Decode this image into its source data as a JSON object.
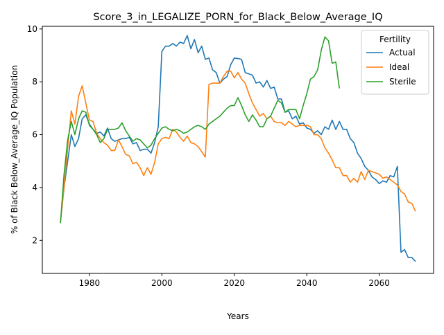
{
  "chart_data": {
    "type": "line",
    "title": "Score_3_in_LEGALIZE_PORN_for_Black_Below_Average_IQ",
    "xlabel": "Years",
    "ylabel": "% of Black Below_Average_IQ Population",
    "xlim": [
      1967,
      2075
    ],
    "ylim": [
      0.75,
      10.1
    ],
    "xticks": [
      1980,
      2000,
      2020,
      2040,
      2060
    ],
    "yticks": [
      2,
      4,
      6,
      8,
      10
    ],
    "grid": false,
    "legend": {
      "title": "Fertility",
      "placement": "top-right"
    },
    "series": [
      {
        "name": "Actual",
        "color": "#1f77b4",
        "points": [
          [
            1972,
            2.7
          ],
          [
            1973,
            4.0
          ],
          [
            1974,
            5.0
          ],
          [
            1975,
            6.0
          ],
          [
            1976,
            5.55
          ],
          [
            1977,
            5.85
          ],
          [
            1978,
            6.6
          ],
          [
            1979,
            6.75
          ],
          [
            1980,
            6.4
          ],
          [
            1981,
            6.2
          ],
          [
            1982,
            6.05
          ],
          [
            1983,
            6.1
          ],
          [
            1984,
            5.95
          ],
          [
            1985,
            6.25
          ],
          [
            1986,
            5.85
          ],
          [
            1987,
            5.75
          ],
          [
            1988,
            5.8
          ],
          [
            1989,
            5.85
          ],
          [
            1990,
            5.85
          ],
          [
            1991,
            5.9
          ],
          [
            1992,
            5.65
          ],
          [
            1993,
            5.7
          ],
          [
            1994,
            5.4
          ],
          [
            1995,
            5.45
          ],
          [
            1996,
            5.45
          ],
          [
            1997,
            5.3
          ],
          [
            1998,
            5.7
          ],
          [
            1999,
            6.3
          ],
          [
            2000,
            9.15
          ],
          [
            2001,
            9.35
          ],
          [
            2002,
            9.35
          ],
          [
            2003,
            9.45
          ],
          [
            2004,
            9.35
          ],
          [
            2005,
            9.5
          ],
          [
            2006,
            9.45
          ],
          [
            2007,
            9.75
          ],
          [
            2008,
            9.25
          ],
          [
            2009,
            9.6
          ],
          [
            2010,
            9.1
          ],
          [
            2011,
            9.35
          ],
          [
            2012,
            8.85
          ],
          [
            2013,
            8.9
          ],
          [
            2014,
            8.45
          ],
          [
            2015,
            8.35
          ],
          [
            2016,
            7.95
          ],
          [
            2017,
            8.1
          ],
          [
            2018,
            8.2
          ],
          [
            2019,
            8.65
          ],
          [
            2020,
            8.9
          ],
          [
            2021,
            8.88
          ],
          [
            2022,
            8.85
          ],
          [
            2023,
            8.35
          ],
          [
            2024,
            8.3
          ],
          [
            2025,
            8.25
          ],
          [
            2026,
            7.95
          ],
          [
            2027,
            8.0
          ],
          [
            2028,
            7.8
          ],
          [
            2029,
            8.05
          ],
          [
            2030,
            7.75
          ],
          [
            2031,
            7.8
          ],
          [
            2032,
            7.35
          ],
          [
            2033,
            7.35
          ],
          [
            2034,
            6.85
          ],
          [
            2035,
            6.9
          ],
          [
            2036,
            6.6
          ],
          [
            2037,
            6.7
          ],
          [
            2038,
            6.4
          ],
          [
            2039,
            6.45
          ],
          [
            2040,
            6.25
          ],
          [
            2041,
            6.2
          ],
          [
            2042,
            6.05
          ],
          [
            2043,
            6.15
          ],
          [
            2044,
            6.0
          ],
          [
            2045,
            6.3
          ],
          [
            2046,
            6.2
          ],
          [
            2047,
            6.55
          ],
          [
            2048,
            6.2
          ],
          [
            2049,
            6.5
          ],
          [
            2050,
            6.2
          ],
          [
            2051,
            6.2
          ],
          [
            2052,
            5.85
          ],
          [
            2053,
            5.7
          ],
          [
            2054,
            5.3
          ],
          [
            2055,
            5.1
          ],
          [
            2056,
            4.8
          ],
          [
            2057,
            4.65
          ],
          [
            2058,
            4.4
          ],
          [
            2059,
            4.3
          ],
          [
            2060,
            4.15
          ],
          [
            2061,
            4.25
          ],
          [
            2062,
            4.2
          ],
          [
            2063,
            4.45
          ],
          [
            2064,
            4.4
          ],
          [
            2065,
            4.8
          ],
          [
            2066,
            1.55
          ],
          [
            2067,
            1.65
          ],
          [
            2068,
            1.35
          ],
          [
            2069,
            1.35
          ],
          [
            2070,
            1.2
          ]
        ]
      },
      {
        "name": "Ideal",
        "color": "#ff7f0e",
        "points": [
          [
            1972,
            2.7
          ],
          [
            1973,
            4.0
          ],
          [
            1974,
            5.5
          ],
          [
            1975,
            6.9
          ],
          [
            1976,
            6.4
          ],
          [
            1977,
            7.45
          ],
          [
            1978,
            7.85
          ],
          [
            1979,
            7.2
          ],
          [
            1980,
            6.55
          ],
          [
            1981,
            6.5
          ],
          [
            1982,
            6.05
          ],
          [
            1983,
            5.85
          ],
          [
            1984,
            5.7
          ],
          [
            1985,
            5.6
          ],
          [
            1986,
            5.4
          ],
          [
            1987,
            5.4
          ],
          [
            1988,
            5.8
          ],
          [
            1989,
            5.55
          ],
          [
            1990,
            5.25
          ],
          [
            1991,
            5.2
          ],
          [
            1992,
            4.9
          ],
          [
            1993,
            4.95
          ],
          [
            1994,
            4.75
          ],
          [
            1995,
            4.45
          ],
          [
            1996,
            4.75
          ],
          [
            1997,
            4.5
          ],
          [
            1998,
            4.95
          ],
          [
            1999,
            5.65
          ],
          [
            2000,
            5.85
          ],
          [
            2001,
            5.9
          ],
          [
            2002,
            5.85
          ],
          [
            2003,
            6.2
          ],
          [
            2004,
            6.1
          ],
          [
            2005,
            5.9
          ],
          [
            2006,
            5.75
          ],
          [
            2007,
            5.95
          ],
          [
            2008,
            5.7
          ],
          [
            2009,
            5.65
          ],
          [
            2010,
            5.55
          ],
          [
            2011,
            5.35
          ],
          [
            2012,
            5.15
          ],
          [
            2013,
            7.9
          ],
          [
            2014,
            7.95
          ],
          [
            2015,
            7.95
          ],
          [
            2016,
            7.95
          ],
          [
            2017,
            8.2
          ],
          [
            2018,
            8.4
          ],
          [
            2019,
            8.4
          ],
          [
            2020,
            8.15
          ],
          [
            2021,
            8.35
          ],
          [
            2022,
            8.1
          ],
          [
            2023,
            7.95
          ],
          [
            2024,
            7.55
          ],
          [
            2025,
            7.2
          ],
          [
            2026,
            6.95
          ],
          [
            2027,
            6.7
          ],
          [
            2028,
            6.8
          ],
          [
            2029,
            6.6
          ],
          [
            2030,
            6.7
          ],
          [
            2031,
            6.5
          ],
          [
            2032,
            6.45
          ],
          [
            2033,
            6.45
          ],
          [
            2034,
            6.35
          ],
          [
            2035,
            6.5
          ],
          [
            2036,
            6.4
          ],
          [
            2037,
            6.3
          ],
          [
            2038,
            6.35
          ],
          [
            2039,
            6.35
          ],
          [
            2040,
            6.35
          ],
          [
            2041,
            6.3
          ],
          [
            2042,
            6.0
          ],
          [
            2043,
            6.0
          ],
          [
            2044,
            5.85
          ],
          [
            2045,
            5.5
          ],
          [
            2046,
            5.3
          ],
          [
            2047,
            5.05
          ],
          [
            2048,
            4.75
          ],
          [
            2049,
            4.75
          ],
          [
            2050,
            4.45
          ],
          [
            2051,
            4.45
          ],
          [
            2052,
            4.2
          ],
          [
            2053,
            4.35
          ],
          [
            2054,
            4.2
          ],
          [
            2055,
            4.6
          ],
          [
            2056,
            4.3
          ],
          [
            2057,
            4.65
          ],
          [
            2058,
            4.6
          ],
          [
            2059,
            4.55
          ],
          [
            2060,
            4.5
          ],
          [
            2061,
            4.35
          ],
          [
            2062,
            4.4
          ],
          [
            2063,
            4.3
          ],
          [
            2064,
            4.2
          ],
          [
            2065,
            4.1
          ],
          [
            2066,
            3.85
          ],
          [
            2067,
            3.75
          ],
          [
            2068,
            3.45
          ],
          [
            2069,
            3.4
          ],
          [
            2070,
            3.1
          ]
        ]
      },
      {
        "name": "Sterile",
        "color": "#2ca02c",
        "points": [
          [
            1972,
            2.65
          ],
          [
            1973,
            4.5
          ],
          [
            1974,
            5.8
          ],
          [
            1975,
            6.5
          ],
          [
            1976,
            6.0
          ],
          [
            1977,
            6.6
          ],
          [
            1978,
            6.9
          ],
          [
            1979,
            6.85
          ],
          [
            1980,
            6.35
          ],
          [
            1981,
            6.2
          ],
          [
            1982,
            6.0
          ],
          [
            1983,
            5.7
          ],
          [
            1984,
            5.85
          ],
          [
            1985,
            6.2
          ],
          [
            1986,
            6.2
          ],
          [
            1987,
            6.2
          ],
          [
            1988,
            6.25
          ],
          [
            1989,
            6.45
          ],
          [
            1990,
            6.15
          ],
          [
            1991,
            5.95
          ],
          [
            1992,
            5.75
          ],
          [
            1993,
            5.85
          ],
          [
            1994,
            5.8
          ],
          [
            1995,
            5.65
          ],
          [
            1996,
            5.5
          ],
          [
            1997,
            5.6
          ],
          [
            1998,
            5.85
          ],
          [
            1999,
            6.05
          ],
          [
            2000,
            6.25
          ],
          [
            2001,
            6.3
          ],
          [
            2002,
            6.2
          ],
          [
            2003,
            6.15
          ],
          [
            2004,
            6.2
          ],
          [
            2005,
            6.15
          ],
          [
            2006,
            6.05
          ],
          [
            2007,
            6.1
          ],
          [
            2008,
            6.2
          ],
          [
            2009,
            6.3
          ],
          [
            2010,
            6.35
          ],
          [
            2011,
            6.3
          ],
          [
            2012,
            6.2
          ],
          [
            2013,
            6.4
          ],
          [
            2014,
            6.5
          ],
          [
            2015,
            6.6
          ],
          [
            2016,
            6.7
          ],
          [
            2017,
            6.85
          ],
          [
            2018,
            7.0
          ],
          [
            2019,
            7.1
          ],
          [
            2020,
            7.1
          ],
          [
            2021,
            7.4
          ],
          [
            2022,
            7.1
          ],
          [
            2023,
            6.75
          ],
          [
            2024,
            6.5
          ],
          [
            2025,
            6.75
          ],
          [
            2026,
            6.55
          ],
          [
            2027,
            6.3
          ],
          [
            2028,
            6.3
          ],
          [
            2029,
            6.6
          ],
          [
            2030,
            6.7
          ],
          [
            2031,
            7.0
          ],
          [
            2032,
            7.3
          ],
          [
            2033,
            7.2
          ],
          [
            2034,
            6.85
          ],
          [
            2035,
            6.95
          ],
          [
            2036,
            6.95
          ],
          [
            2037,
            6.95
          ],
          [
            2038,
            6.6
          ],
          [
            2039,
            7.1
          ],
          [
            2040,
            7.55
          ],
          [
            2041,
            8.1
          ],
          [
            2042,
            8.2
          ],
          [
            2043,
            8.45
          ],
          [
            2044,
            9.2
          ],
          [
            2045,
            9.7
          ],
          [
            2046,
            9.55
          ],
          [
            2047,
            8.7
          ],
          [
            2048,
            8.75
          ],
          [
            2049,
            7.75
          ]
        ]
      }
    ]
  }
}
